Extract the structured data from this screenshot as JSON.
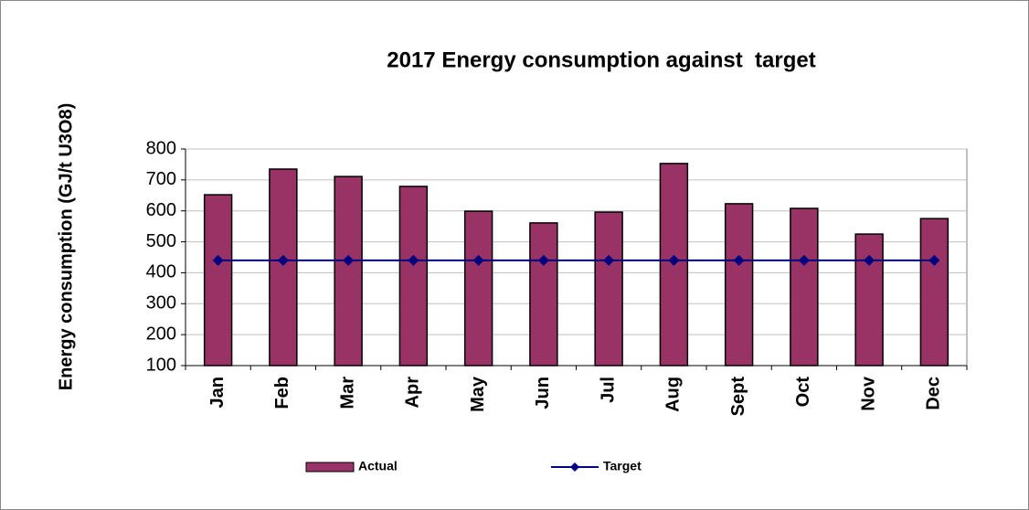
{
  "chart_data": {
    "type": "bar",
    "title": "2017 Energy consumption against  target",
    "y_label": "Energy consumption (GJ/t U3O8)",
    "categories": [
      "Jan",
      "Feb",
      "Mar",
      "Apr",
      "May",
      "Jun",
      "Jul",
      "Aug",
      "Sept",
      "Oct",
      "Nov",
      "Dec"
    ],
    "series": [
      {
        "name": "Actual",
        "type": "bar",
        "color": "#993366",
        "values": [
          652,
          735,
          711,
          679,
          599,
          561,
          596,
          753,
          623,
          608,
          525,
          575
        ]
      },
      {
        "name": "Target",
        "type": "line",
        "color": "#000080",
        "values": [
          440,
          440,
          440,
          440,
          440,
          440,
          440,
          440,
          440,
          440,
          440,
          440
        ]
      }
    ],
    "ylim": [
      100,
      800
    ],
    "yticks": [
      100,
      200,
      300,
      400,
      500,
      600,
      700,
      800
    ],
    "grid": true,
    "legend": "bottom"
  }
}
